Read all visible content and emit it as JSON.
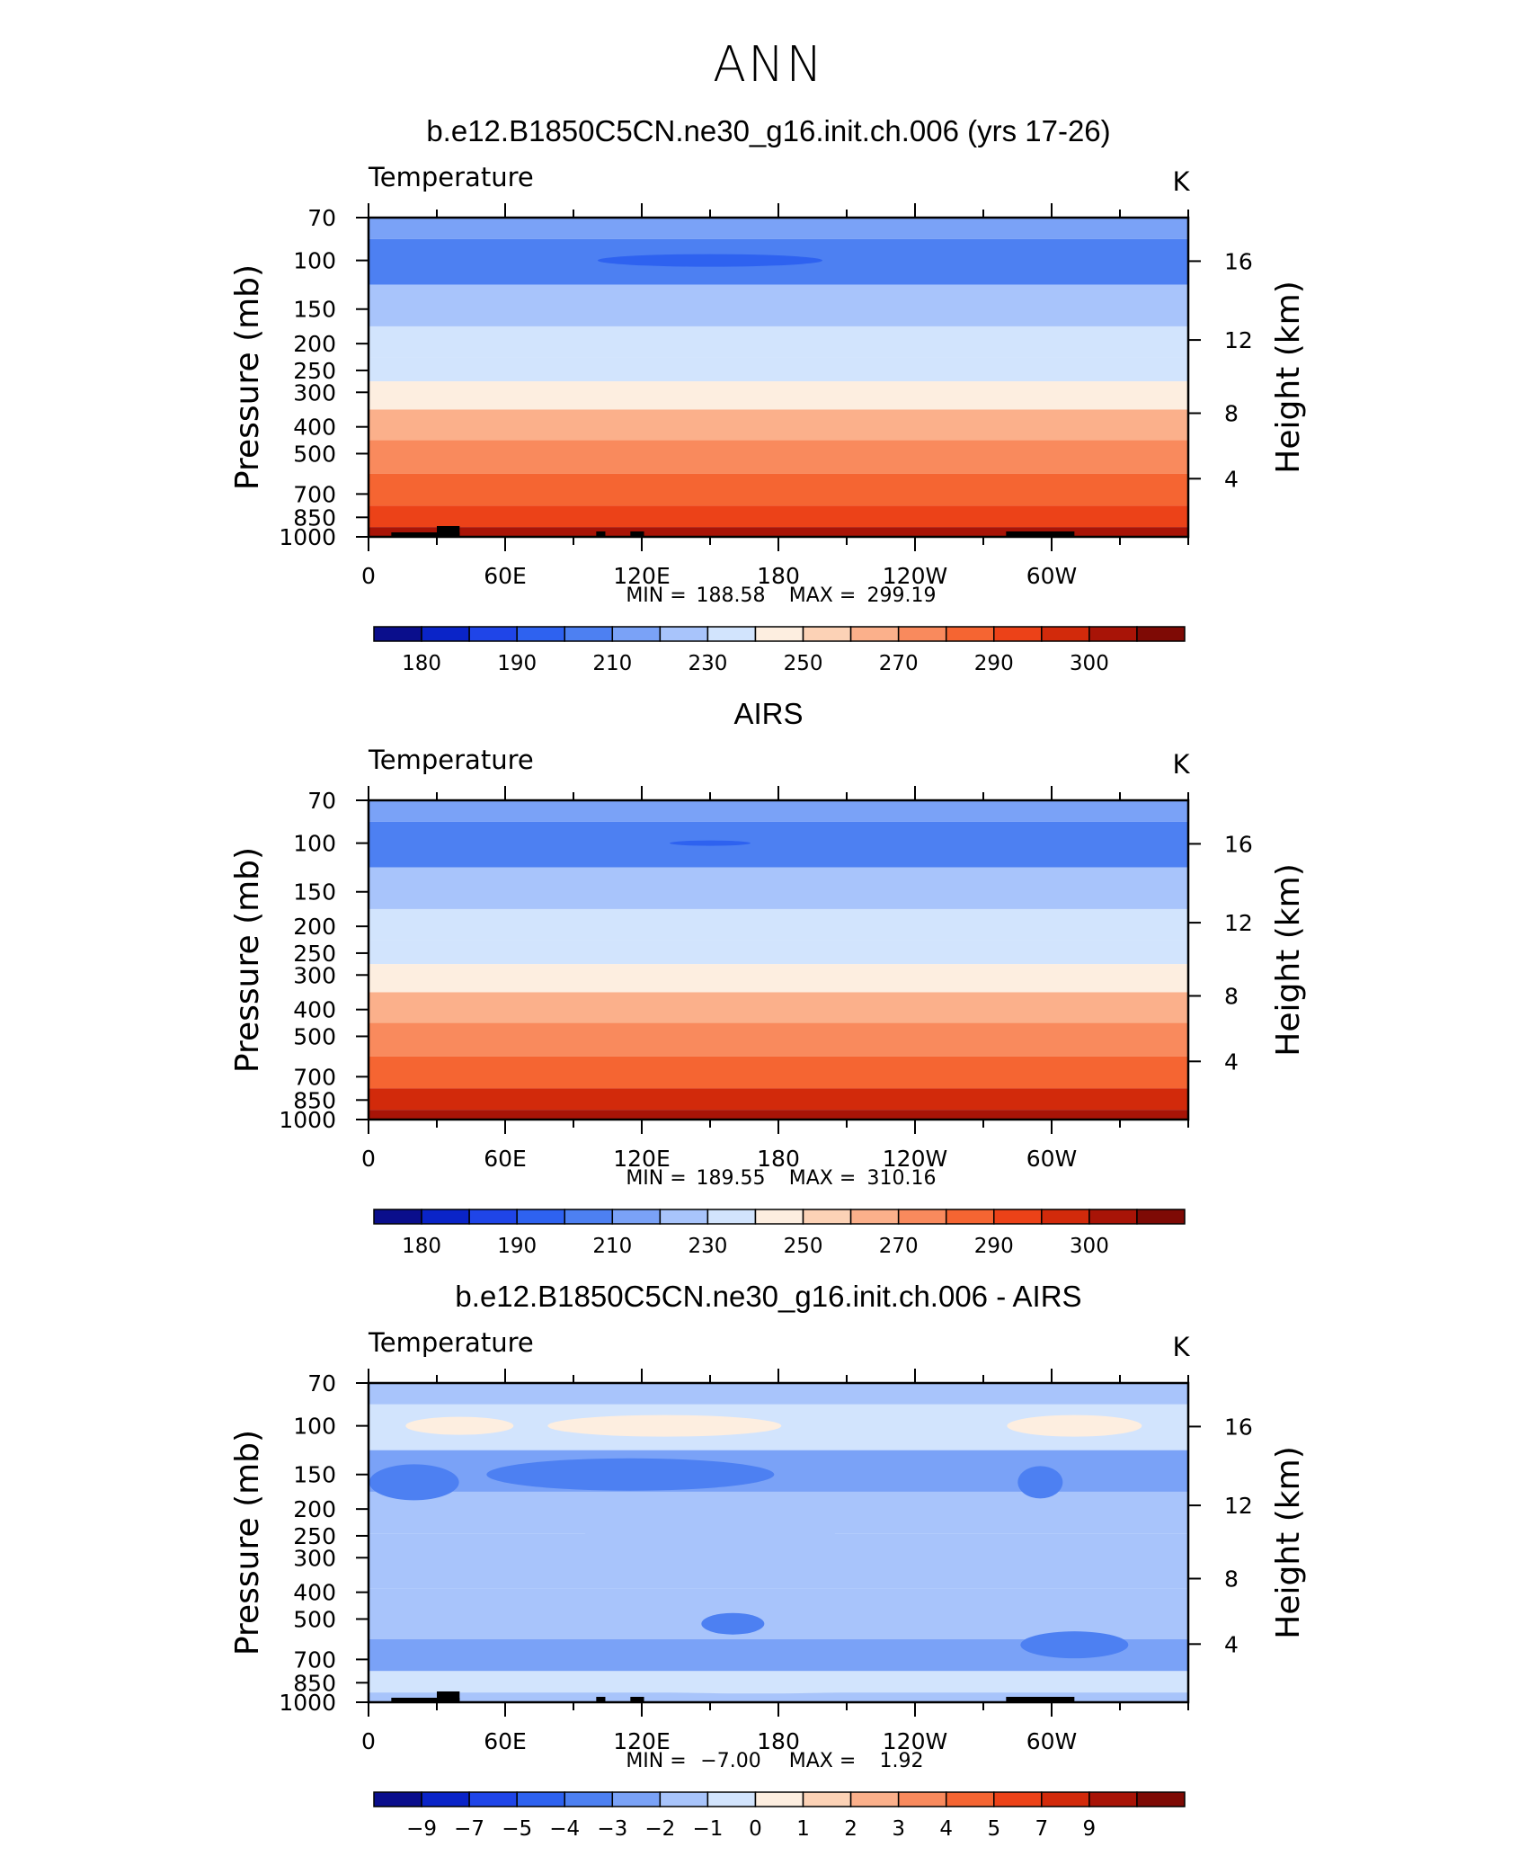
{
  "figure_title": "ANN",
  "colors": {
    "temperature_palette": [
      "#0a0e8c",
      "#0a24c8",
      "#1f45e8",
      "#2e62f0",
      "#4d80f2",
      "#7aa2f7",
      "#a8c4fb",
      "#d2e4fd",
      "#fdeee0",
      "#fcd2b6",
      "#fbb08b",
      "#f98a5d",
      "#f56532",
      "#ec4218",
      "#d22a0b",
      "#a81407",
      "#7e0a05"
    ],
    "difference_palette": [
      "#0a0e8c",
      "#0a24c8",
      "#1f45e8",
      "#2e62f0",
      "#4d80f2",
      "#7aa2f7",
      "#a8c4fb",
      "#d2e4fd",
      "#fdeee0",
      "#fcd2b6",
      "#fbb08b",
      "#f98a5d",
      "#f56532",
      "#ec4218",
      "#d22a0b",
      "#a81407",
      "#7e0a05"
    ],
    "topography": "#000000"
  },
  "chart_data": [
    {
      "type": "heatmap",
      "title": "b.e12.B1850C5CN.ne30_g16.init.ch.006 (yrs 17-26)",
      "left_label": "Temperature",
      "units": "K",
      "ylabel": "Pressure  (mb)",
      "ylabel_right": "Height  (km)",
      "x_ticks": [
        "0",
        "60E",
        "120E",
        "180",
        "120W",
        "60W"
      ],
      "y_ticks": [
        "70",
        "100",
        "150",
        "200",
        "250",
        "300",
        "400",
        "500",
        "700",
        "850",
        "1000"
      ],
      "y_ticks_right": [
        "16",
        "12",
        "8",
        "4"
      ],
      "stats": {
        "min_label": "MIN  =",
        "min": "188.58",
        "max_label": "MAX  =",
        "max": "299.19"
      },
      "colorbar_labels": [
        "180",
        "190",
        "210",
        "230",
        "250",
        "270",
        "290",
        "300"
      ],
      "layers": [
        {
          "level": 70,
          "value": 200
        },
        {
          "level": 100,
          "value": 195
        },
        {
          "level": 150,
          "value": 213
        },
        {
          "level": 200,
          "value": 220
        },
        {
          "level": 250,
          "value": 228
        },
        {
          "level": 300,
          "value": 237
        },
        {
          "level": 400,
          "value": 250
        },
        {
          "level": 500,
          "value": 262
        },
        {
          "level": 700,
          "value": 278
        },
        {
          "level": 850,
          "value": 288
        },
        {
          "level": 1000,
          "value": 296
        }
      ]
    },
    {
      "type": "heatmap",
      "title": "AIRS",
      "left_label": "Temperature",
      "units": "K",
      "ylabel": "Pressure  (mb)",
      "ylabel_right": "Height  (km)",
      "x_ticks": [
        "0",
        "60E",
        "120E",
        "180",
        "120W",
        "60W"
      ],
      "y_ticks": [
        "70",
        "100",
        "150",
        "200",
        "250",
        "300",
        "400",
        "500",
        "700",
        "850",
        "1000"
      ],
      "y_ticks_right": [
        "16",
        "12",
        "8",
        "4"
      ],
      "stats": {
        "min_label": "MIN  =",
        "min": "189.55",
        "max_label": "MAX  =",
        "max": "310.16"
      },
      "colorbar_labels": [
        "180",
        "190",
        "210",
        "230",
        "250",
        "270",
        "290",
        "300"
      ],
      "layers": [
        {
          "level": 70,
          "value": 200
        },
        {
          "level": 100,
          "value": 196
        },
        {
          "level": 150,
          "value": 213
        },
        {
          "level": 200,
          "value": 221
        },
        {
          "level": 250,
          "value": 229
        },
        {
          "level": 300,
          "value": 238
        },
        {
          "level": 400,
          "value": 251
        },
        {
          "level": 500,
          "value": 263
        },
        {
          "level": 700,
          "value": 279
        },
        {
          "level": 850,
          "value": 290
        },
        {
          "level": 1000,
          "value": 298
        }
      ]
    },
    {
      "type": "heatmap",
      "title": "b.e12.B1850C5CN.ne30_g16.init.ch.006 - AIRS",
      "left_label": "Temperature",
      "units": "K",
      "ylabel": "Pressure  (mb)",
      "ylabel_right": "Height  (km)",
      "x_ticks": [
        "0",
        "60E",
        "120E",
        "180",
        "120W",
        "60W"
      ],
      "y_ticks": [
        "70",
        "100",
        "150",
        "200",
        "250",
        "300",
        "400",
        "500",
        "700",
        "850",
        "1000"
      ],
      "y_ticks_right": [
        "16",
        "12",
        "8",
        "4"
      ],
      "stats": {
        "min_label": "MIN  =",
        "min": "−7.00",
        "max_label": "MAX  =",
        "max": "1.92"
      },
      "colorbar_labels": [
        "−9",
        "−7",
        "−5",
        "−4",
        "−3",
        "−2",
        "−1",
        "0",
        "1",
        "2",
        "3",
        "4",
        "5",
        "7",
        "9"
      ],
      "layers": [
        {
          "level": 70,
          "value": -1.5
        },
        {
          "level": 100,
          "value": -0.5
        },
        {
          "level": 150,
          "value": -3
        },
        {
          "level": 200,
          "value": -2
        },
        {
          "level": 300,
          "value": -1.2
        },
        {
          "level": 500,
          "value": -2
        },
        {
          "level": 700,
          "value": -2.5
        },
        {
          "level": 850,
          "value": -0.5
        },
        {
          "level": 1000,
          "value": -1.5
        }
      ]
    }
  ]
}
